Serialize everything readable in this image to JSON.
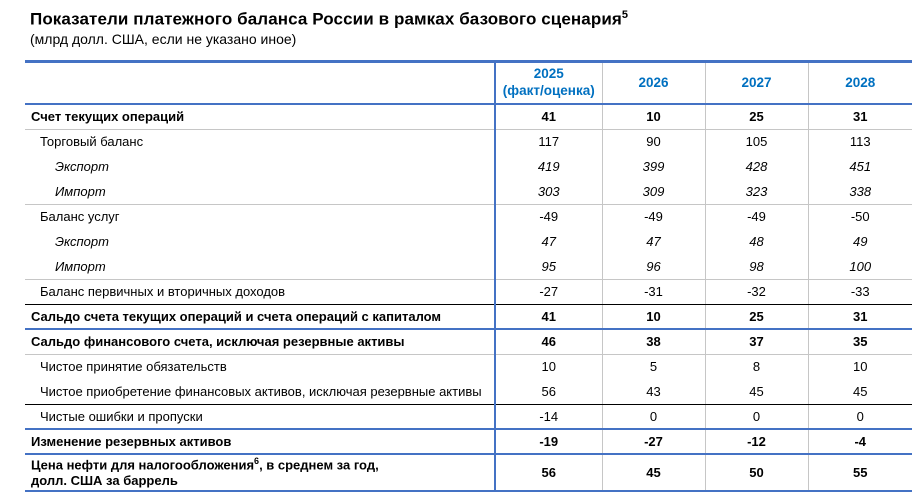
{
  "page": {
    "title": "Показатели платежного баланса России в рамках базового сценария",
    "title_footnote": "5",
    "subtitle": "(млрд долл. США, если не указано иное)"
  },
  "colors": {
    "header_text_blue": "#0070C0",
    "line_blue": "#4472C4",
    "line_gray": "#C6C6C6",
    "line_black": "#000000"
  },
  "table": {
    "header": {
      "label_col": "",
      "col1_line1": "2025",
      "col1_line2": "(факт/оценка)",
      "col2": "2026",
      "col3": "2027",
      "col4": "2028"
    },
    "rows": [
      {
        "label": "Счет текущих операций",
        "style": "bold",
        "indent": 0,
        "values": [
          "41",
          "10",
          "25",
          "31"
        ],
        "border": "gray"
      },
      {
        "label": "Торговый баланс",
        "style": "regular",
        "indent": 1,
        "values": [
          "117",
          "90",
          "105",
          "113"
        ],
        "border": "none"
      },
      {
        "label": "Экспорт",
        "style": "italic",
        "indent": 2,
        "values": [
          "419",
          "399",
          "428",
          "451"
        ],
        "border": "none"
      },
      {
        "label": "Импорт",
        "style": "italic",
        "indent": 2,
        "values": [
          "303",
          "309",
          "323",
          "338"
        ],
        "border": "gray"
      },
      {
        "label": "Баланс услуг",
        "style": "regular",
        "indent": 1,
        "values": [
          "-49",
          "-49",
          "-49",
          "-50"
        ],
        "border": "none"
      },
      {
        "label": "Экспорт",
        "style": "italic",
        "indent": 2,
        "values": [
          "47",
          "47",
          "48",
          "49"
        ],
        "border": "none"
      },
      {
        "label": "Импорт",
        "style": "italic",
        "indent": 2,
        "values": [
          "95",
          "96",
          "98",
          "100"
        ],
        "border": "gray"
      },
      {
        "label": "Баланс первичных и вторичных доходов",
        "style": "regular",
        "indent": 1,
        "values": [
          "-27",
          "-31",
          "-32",
          "-33"
        ],
        "border": "black"
      },
      {
        "label": "Сальдо счета текущих операций и счета операций с капиталом",
        "style": "bold",
        "indent": 0,
        "values": [
          "41",
          "10",
          "25",
          "31"
        ],
        "border": "blue"
      },
      {
        "label": "Сальдо финансового счета, исключая резервные активы",
        "style": "bold",
        "indent": 0,
        "values": [
          "46",
          "38",
          "37",
          "35"
        ],
        "border": "gray"
      },
      {
        "label": "Чистое принятие обязательств",
        "style": "regular",
        "indent": 1,
        "values": [
          "10",
          "5",
          "8",
          "10"
        ],
        "border": "none"
      },
      {
        "label": "Чистое приобретение финансовых активов, исключая резервные активы",
        "style": "regular",
        "indent": 1,
        "values": [
          "56",
          "43",
          "45",
          "45"
        ],
        "border": "black"
      },
      {
        "label": "Чистые ошибки и пропуски",
        "style": "regular",
        "indent": 1,
        "values": [
          "-14",
          "0",
          "0",
          "0"
        ],
        "border": "blue"
      },
      {
        "label": "Изменение резервных активов",
        "style": "bold",
        "indent": 0,
        "values": [
          "-19",
          "-27",
          "-12",
          "-4"
        ],
        "border": "blue"
      },
      {
        "label": "Цена нефти для налогообложения",
        "label_footnote": "6",
        "label_suffix": ", в среднем за год,",
        "label_line2": "долл. США за баррель",
        "style": "bold",
        "indent": 0,
        "values": [
          "56",
          "45",
          "50",
          "55"
        ],
        "border": "blue",
        "two_line": true
      }
    ]
  }
}
